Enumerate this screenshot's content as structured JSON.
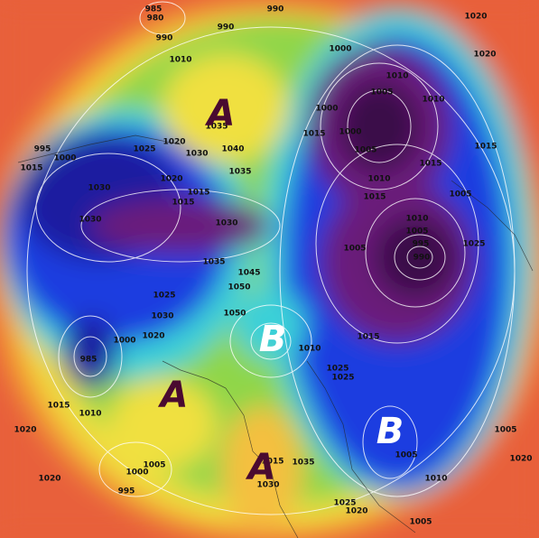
{
  "map": {
    "pressure_centers": [
      {
        "label": "A"
      },
      {
        "label": "A"
      },
      {
        "label": "A"
      },
      {
        "label": "B"
      },
      {
        "label": "B"
      }
    ],
    "isobar_labels": [
      985,
      980,
      990,
      990,
      990,
      1010,
      1020,
      1020,
      1000,
      1010,
      1005,
      1010,
      1000,
      1000,
      1005,
      1015,
      1015,
      1010,
      1015,
      1015,
      1005,
      1035,
      1040,
      1035,
      1020,
      1025,
      1030,
      1020,
      1015,
      1015,
      995,
      1000,
      1015,
      1030,
      1030,
      1030,
      1035,
      1045,
      1050,
      1050,
      1025,
      1030,
      1020,
      1000,
      985,
      1010,
      1015,
      1020,
      1020,
      1000,
      1005,
      995,
      1010,
      1005,
      995,
      990,
      1005,
      1025,
      1015,
      1010,
      1025,
      1025,
      1005,
      1010,
      1030,
      1035,
      1015,
      1025,
      1020,
      1005,
      1020,
      1005
    ]
  }
}
